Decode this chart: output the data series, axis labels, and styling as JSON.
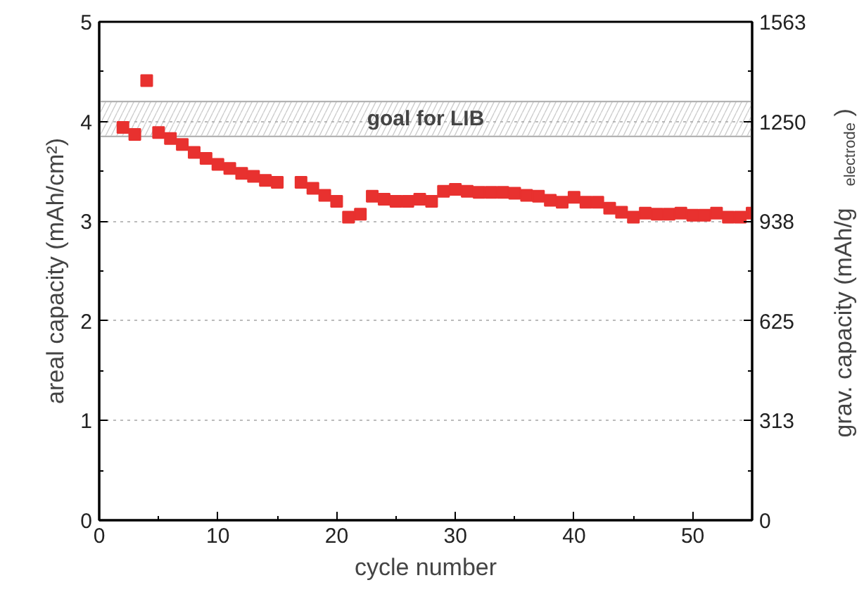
{
  "chart_data": {
    "type": "scatter",
    "xlabel": "cycle number",
    "ylabel": "areal capacity (mAh/cm²)",
    "y2label": "grav. capacity (mAh/g$_{electrode}$)",
    "xlim": [
      0,
      55
    ],
    "xticks": [
      0,
      10,
      20,
      30,
      40,
      50
    ],
    "ylim": [
      0,
      5
    ],
    "yticks": [
      0,
      1,
      2,
      3,
      4,
      5
    ],
    "y2lim": [
      0,
      1563
    ],
    "y2ticks": [
      0,
      313,
      625,
      938,
      1250,
      1563
    ],
    "grid": "y",
    "marker": "square",
    "bands": [
      {
        "axis": "y",
        "from": 3.85,
        "to": 4.2,
        "label": "goal for LIB",
        "color": "#aaaaaa"
      }
    ],
    "series": [
      {
        "color": "#e8312f",
        "x": [
          2,
          3,
          4,
          5,
          6,
          7,
          8,
          9,
          10,
          11,
          12,
          13,
          14,
          15,
          17,
          18,
          19,
          20,
          21,
          22,
          23,
          24,
          25,
          26,
          27,
          28,
          29,
          30,
          31,
          32,
          33,
          34,
          35,
          36,
          37,
          38,
          39,
          40,
          41,
          42,
          43,
          44,
          45,
          46,
          47,
          48,
          49,
          50,
          51,
          52,
          53,
          54,
          55
        ],
        "values": [
          3.94,
          3.87,
          4.41,
          3.89,
          3.83,
          3.77,
          3.69,
          3.63,
          3.57,
          3.53,
          3.48,
          3.45,
          3.41,
          3.39,
          3.39,
          3.33,
          3.26,
          3.2,
          3.04,
          3.07,
          3.25,
          3.22,
          3.2,
          3.2,
          3.22,
          3.2,
          3.3,
          3.32,
          3.3,
          3.29,
          3.29,
          3.29,
          3.28,
          3.26,
          3.25,
          3.21,
          3.19,
          3.24,
          3.19,
          3.19,
          3.13,
          3.09,
          3.04,
          3.08,
          3.07,
          3.07,
          3.08,
          3.06,
          3.06,
          3.08,
          3.04,
          3.04,
          3.08
        ]
      }
    ]
  }
}
